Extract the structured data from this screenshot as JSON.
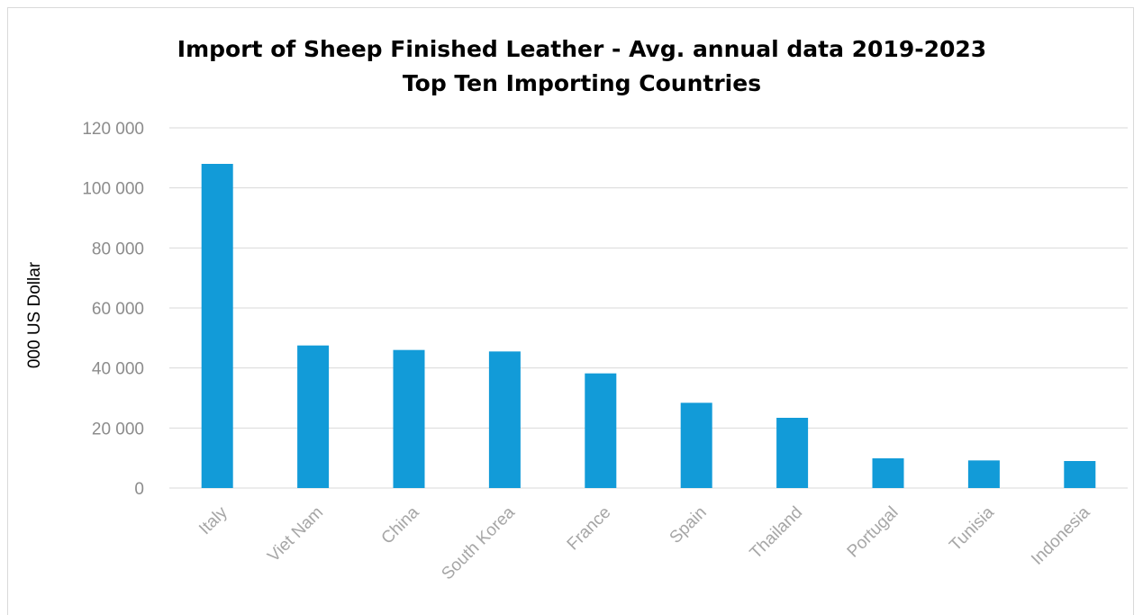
{
  "chart_data": {
    "type": "bar",
    "title": "Import of Sheep Finished Leather - Avg. annual data 2019-2023",
    "subtitle": "Top Ten Importing Countries",
    "xlabel": "",
    "ylabel": "000 US Dollar",
    "categories": [
      "Italy",
      "Viet Nam",
      "China",
      "South Korea",
      "France",
      "Spain",
      "Thailand",
      "Portugal",
      "Tunisia",
      "Indonesia"
    ],
    "values": [
      108000,
      47500,
      46000,
      45500,
      38200,
      28400,
      23400,
      9900,
      9200,
      9000
    ],
    "ylim": [
      0,
      120000
    ],
    "yticks": [
      0,
      20000,
      40000,
      60000,
      80000,
      100000,
      120000
    ],
    "ytick_labels": [
      "0",
      "20 000",
      "40 000",
      "60 000",
      "80 000",
      "100 000",
      "120 000"
    ],
    "grid": true,
    "legend": "none",
    "colors": {
      "bar": "#129bd8",
      "grid": "#d9d9d9"
    }
  }
}
